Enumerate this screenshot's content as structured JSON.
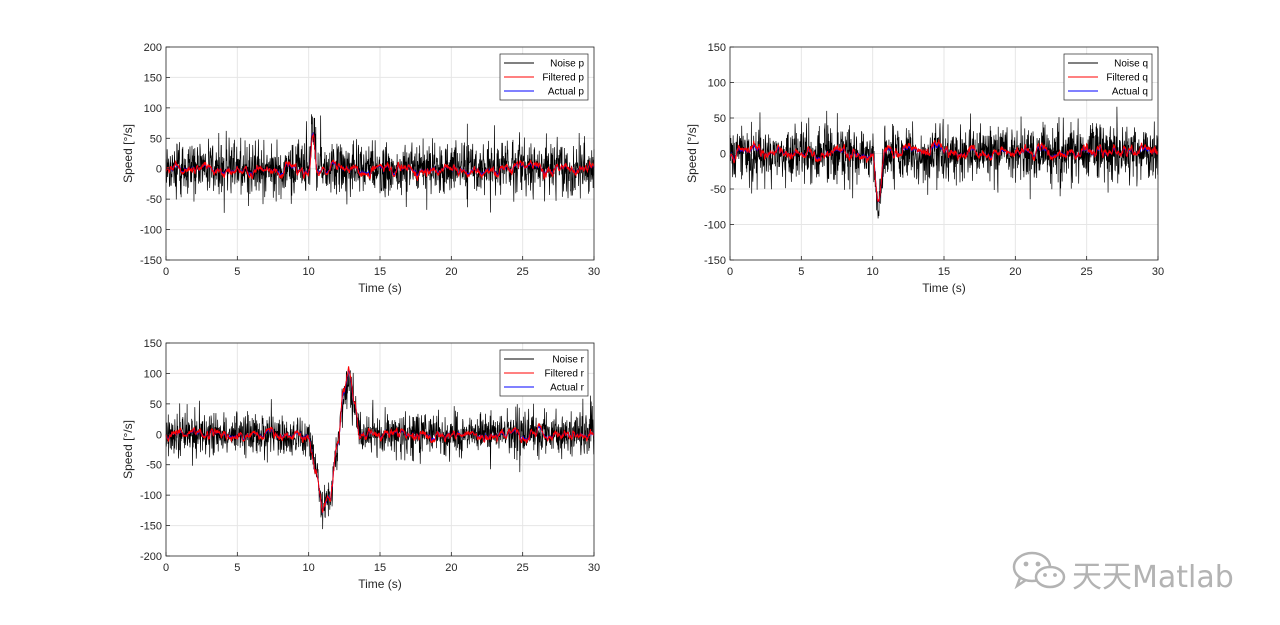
{
  "colors": {
    "noise": "#000000",
    "filtered": "#ff0000",
    "actual": "#0000ff",
    "grid": "#e6e6e6",
    "axis": "#262626"
  },
  "watermark": {
    "text": "天天Matlab",
    "icon": "wechat-logo-icon"
  },
  "chart_data": [
    {
      "type": "line",
      "xlabel": "Time (s)",
      "ylabel": "Speed [°/s]",
      "xlim": [
        0,
        30
      ],
      "ylim": [
        -150,
        200
      ],
      "xticks": [
        0,
        5,
        10,
        15,
        20,
        25,
        30
      ],
      "yticks": [
        -150,
        -100,
        -50,
        0,
        50,
        100,
        150,
        200
      ],
      "grid": true,
      "legend_position": "top-right",
      "series": [
        {
          "name": "Noise p",
          "color": "#000000",
          "noise_amplitude": 40
        },
        {
          "name": "Filtered p",
          "color": "#ff0000"
        },
        {
          "name": "Actual p",
          "color": "#0000ff"
        }
      ],
      "actual_signal": {
        "x": [
          0,
          10,
          10.3,
          10.6,
          11,
          30
        ],
        "y": [
          0,
          0,
          65,
          5,
          0,
          0
        ]
      }
    },
    {
      "type": "line",
      "xlabel": "Time (s)",
      "ylabel": "Speed [°/s]",
      "xlim": [
        0,
        30
      ],
      "ylim": [
        -150,
        150
      ],
      "xticks": [
        0,
        5,
        10,
        15,
        20,
        25,
        30
      ],
      "yticks": [
        -150,
        -100,
        -50,
        0,
        50,
        100,
        150
      ],
      "grid": true,
      "legend_position": "top-right",
      "series": [
        {
          "name": "Noise q",
          "color": "#000000",
          "noise_amplitude": 35
        },
        {
          "name": "Filtered q",
          "color": "#ff0000"
        },
        {
          "name": "Actual q",
          "color": "#0000ff"
        }
      ],
      "actual_signal": {
        "x": [
          0,
          10,
          10.4,
          10.9,
          11.3,
          30
        ],
        "y": [
          0,
          0,
          -70,
          0,
          0,
          0
        ]
      }
    },
    {
      "type": "line",
      "xlabel": "Time (s)",
      "ylabel": "Speed [°/s]",
      "xlim": [
        0,
        30
      ],
      "ylim": [
        -200,
        150
      ],
      "xticks": [
        0,
        5,
        10,
        15,
        20,
        25,
        30
      ],
      "yticks": [
        -200,
        -150,
        -100,
        -50,
        0,
        50,
        100,
        150
      ],
      "grid": true,
      "legend_position": "top-right",
      "series": [
        {
          "name": "Noise r",
          "color": "#000000",
          "noise_amplitude": 32
        },
        {
          "name": "Filtered r",
          "color": "#ff0000"
        },
        {
          "name": "Actual r",
          "color": "#0000ff"
        }
      ],
      "actual_signal": {
        "x": [
          0,
          10,
          10.5,
          11,
          11.5,
          12,
          12.5,
          12.8,
          13.2,
          13.6,
          14,
          30
        ],
        "y": [
          0,
          0,
          -60,
          -125,
          -100,
          -20,
          60,
          95,
          50,
          0,
          0,
          0
        ]
      }
    }
  ]
}
